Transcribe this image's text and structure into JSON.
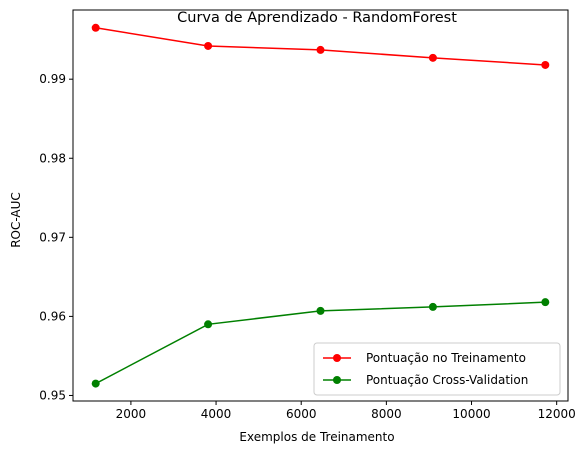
{
  "chart_data": {
    "type": "line",
    "title": "Curva de Aprendizado - RandomForest",
    "xlabel": "Exemplos de Treinamento",
    "ylabel": "ROC-AUC",
    "x": [
      1173,
      3813,
      6453,
      9093,
      11733
    ],
    "series": [
      {
        "name": "Pontuação no Treinamento",
        "color": "#ff0000",
        "values": [
          0.9965,
          0.9942,
          0.9937,
          0.9927,
          0.9918
        ]
      },
      {
        "name": "Pontuação Cross-Validation",
        "color": "#008000",
        "values": [
          0.9515,
          0.959,
          0.9607,
          0.9612,
          0.9618
        ]
      }
    ],
    "xlim": [
      640,
      12266
    ],
    "ylim": [
      0.9493,
      0.99875
    ],
    "xticks": [
      2000,
      4000,
      6000,
      8000,
      10000,
      12000
    ],
    "yticks": [
      0.95,
      0.96,
      0.97,
      0.98,
      0.99
    ],
    "xtick_labels": [
      "2000",
      "4000",
      "6000",
      "8000",
      "10000",
      "12000"
    ],
    "ytick_labels": [
      "0.95",
      "0.96",
      "0.97",
      "0.98",
      "0.99"
    ],
    "grid": false,
    "legend_position": "lower right",
    "marker": "circle"
  }
}
